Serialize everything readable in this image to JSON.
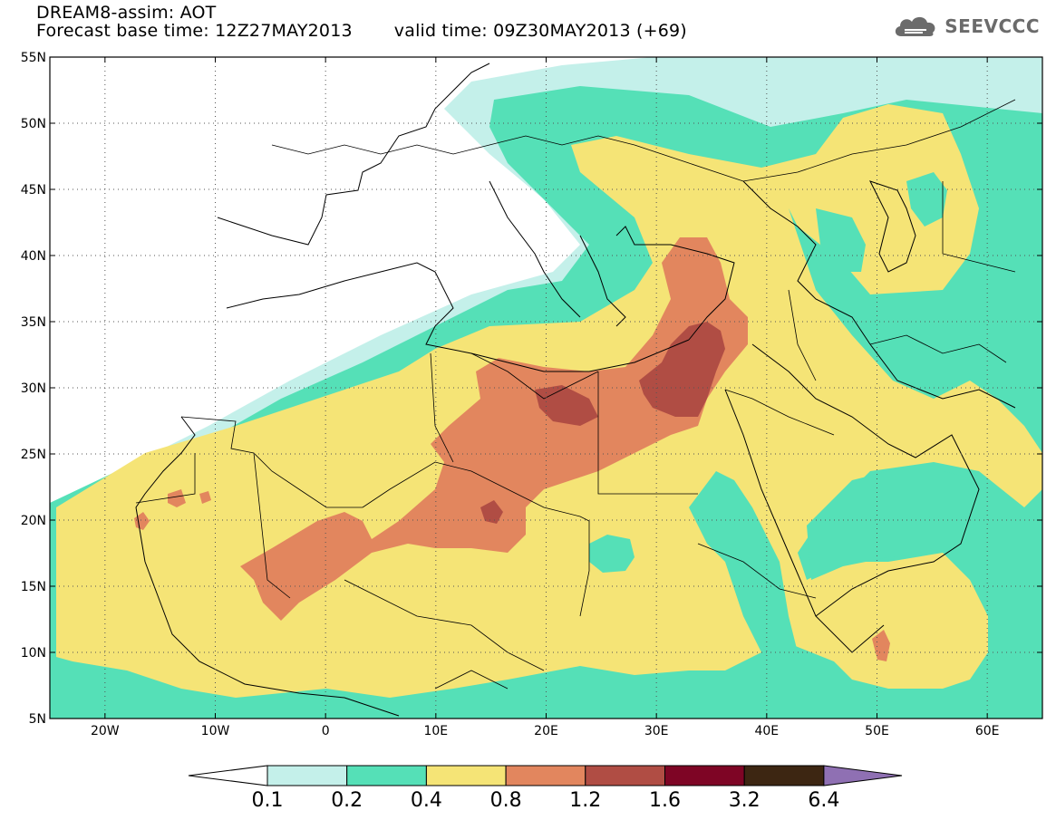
{
  "header": {
    "title": "DREAM8-assim: AOT",
    "base_time_label": "Forecast base time: 12Z27MAY2013",
    "valid_time_label": "valid time: 09Z30MAY2013 (+69)",
    "logo_text": "SEEVCCC"
  },
  "map": {
    "lat_ticks": [
      "55N",
      "50N",
      "45N",
      "40N",
      "35N",
      "30N",
      "25N",
      "20N",
      "15N",
      "10N",
      "5N"
    ],
    "lon_ticks": [
      "20W",
      "10W",
      "0",
      "10E",
      "20E",
      "30E",
      "40E",
      "50E",
      "60E"
    ],
    "lat_range": [
      5,
      55
    ],
    "lon_range": [
      -25,
      65
    ],
    "gridlines": true,
    "icon": "cloud-logo-icon"
  },
  "colorbar": {
    "labels": [
      "0.1",
      "0.2",
      "0.4",
      "0.8",
      "1.2",
      "1.6",
      "3.2",
      "6.4"
    ],
    "colors": [
      "#ffffff",
      "#c4f0ea",
      "#55e0b7",
      "#f5e476",
      "#e2865e",
      "#b04d44",
      "#7e0525",
      "#3d2612",
      "#8f70b3"
    ]
  },
  "colors": {
    "band_01": "#c4f0ea",
    "band_02": "#55e0b7",
    "band_04": "#f5e476",
    "band_08": "#e2865e",
    "band_12": "#b04d44"
  }
}
